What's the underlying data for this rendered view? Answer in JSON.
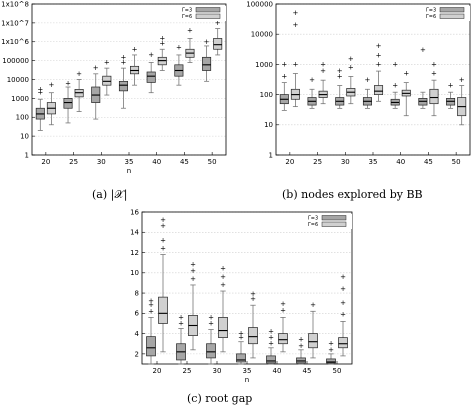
{
  "captions": {
    "a": "(a) |𝒳|",
    "b": "(b) nodes explored by BB",
    "c": "(c) root gap"
  },
  "colors": {
    "gamma3": "#a6a6a6",
    "gamma6": "#d0d0d0"
  },
  "chart_data": [
    {
      "type": "box",
      "yscale": "log",
      "ylim": [
        1,
        100000000
      ],
      "xlabel": "n",
      "categories": [
        "20",
        "25",
        "30",
        "35",
        "40",
        "45",
        "50"
      ],
      "yticks": [
        "1",
        "10",
        "100",
        "1000",
        "10000",
        "100000",
        "1x10^6",
        "1x10^7",
        "1x10^8"
      ],
      "legend": [
        "Γ=3",
        "Γ=6"
      ],
      "series": [
        {
          "name": "Γ=3",
          "boxes": [
            {
              "min": 20,
              "q1": 80,
              "med": 150,
              "q3": 300,
              "max": 900,
              "out": [
                2000,
                3000
              ]
            },
            {
              "min": 50,
              "q1": 300,
              "med": 600,
              "q3": 1000,
              "max": 4000,
              "out": [
                6000
              ]
            },
            {
              "min": 80,
              "q1": 600,
              "med": 1500,
              "q3": 4000,
              "max": 20000,
              "out": [
                40000
              ]
            },
            {
              "min": 300,
              "q1": 2500,
              "med": 5000,
              "q3": 8000,
              "max": 40000,
              "out": [
                80000,
                150000
              ]
            },
            {
              "min": 2000,
              "q1": 7000,
              "med": 15000,
              "q3": 25000,
              "max": 80000,
              "out": [
                200000
              ]
            },
            {
              "min": 5000,
              "q1": 15000,
              "med": 30000,
              "q3": 60000,
              "max": 200000,
              "out": [
                500000
              ]
            },
            {
              "min": 8000,
              "q1": 30000,
              "med": 60000,
              "q3": 150000,
              "max": 600000,
              "out": [
                1000000
              ]
            }
          ]
        },
        {
          "name": "Γ=6",
          "boxes": [
            {
              "min": 40,
              "q1": 150,
              "med": 300,
              "q3": 600,
              "max": 2000,
              "out": [
                5000
              ]
            },
            {
              "min": 200,
              "q1": 1200,
              "med": 2000,
              "q3": 3000,
              "max": 10000,
              "out": [
                20000
              ]
            },
            {
              "min": 1500,
              "q1": 5000,
              "med": 8000,
              "q3": 15000,
              "max": 40000,
              "out": [
                80000
              ]
            },
            {
              "min": 5000,
              "q1": 20000,
              "med": 30000,
              "q3": 50000,
              "max": 200000,
              "out": [
                400000
              ]
            },
            {
              "min": 30000,
              "q1": 60000,
              "med": 100000,
              "q3": 150000,
              "max": 400000,
              "out": [
                800000,
                1500000
              ]
            },
            {
              "min": 80000,
              "q1": 150000,
              "med": 250000,
              "q3": 400000,
              "max": 1500000,
              "out": [
                4000000
              ]
            },
            {
              "min": 200000,
              "q1": 400000,
              "med": 700000,
              "q3": 1500000,
              "max": 5000000,
              "out": [
                10000000
              ]
            }
          ]
        }
      ]
    },
    {
      "type": "box",
      "yscale": "log",
      "ylim": [
        1,
        100000
      ],
      "xlabel": "",
      "categories": [
        "20",
        "25",
        "30",
        "35",
        "40",
        "45",
        "50"
      ],
      "yticks": [
        "1",
        "10",
        "100",
        "1000",
        "10000",
        "100000"
      ],
      "legend": [
        "Γ=3",
        "Γ=6"
      ],
      "series": [
        {
          "name": "Γ=3",
          "boxes": [
            {
              "min": 30,
              "q1": 50,
              "med": 70,
              "q3": 100,
              "max": 250,
              "out": [
                400,
                1000
              ]
            },
            {
              "min": 35,
              "q1": 45,
              "med": 60,
              "q3": 80,
              "max": 150,
              "out": [
                300
              ]
            },
            {
              "min": 35,
              "q1": 45,
              "med": 60,
              "q3": 80,
              "max": 200,
              "out": [
                400,
                600
              ]
            },
            {
              "min": 35,
              "q1": 45,
              "med": 60,
              "q3": 80,
              "max": 150,
              "out": [
                300
              ]
            },
            {
              "min": 35,
              "q1": 45,
              "med": 55,
              "q3": 70,
              "max": 120,
              "out": [
                200,
                1000
              ]
            },
            {
              "min": 35,
              "q1": 45,
              "med": 60,
              "q3": 75,
              "max": 120,
              "out": [
                3000
              ]
            },
            {
              "min": 35,
              "q1": 45,
              "med": 60,
              "q3": 75,
              "max": 120,
              "out": [
                200
              ]
            }
          ]
        },
        {
          "name": "Γ=6",
          "boxes": [
            {
              "min": 40,
              "q1": 70,
              "med": 100,
              "q3": 150,
              "max": 500,
              "out": [
                1000,
                20000,
                50000
              ]
            },
            {
              "min": 50,
              "q1": 80,
              "med": 100,
              "q3": 130,
              "max": 300,
              "out": [
                600,
                1000
              ]
            },
            {
              "min": 50,
              "q1": 90,
              "med": 120,
              "q3": 160,
              "max": 400,
              "out": [
                800,
                1500
              ]
            },
            {
              "min": 60,
              "q1": 100,
              "med": 130,
              "q3": 200,
              "max": 600,
              "out": [
                1000,
                2000,
                4000
              ]
            },
            {
              "min": 20,
              "q1": 90,
              "med": 110,
              "q3": 140,
              "max": 250,
              "out": [
                500
              ]
            },
            {
              "min": 20,
              "q1": 50,
              "med": 80,
              "q3": 150,
              "max": 300,
              "out": [
                500,
                1000
              ]
            },
            {
              "min": 10,
              "q1": 20,
              "med": 40,
              "q3": 80,
              "max": 200,
              "out": [
                300
              ]
            }
          ]
        }
      ]
    },
    {
      "type": "box",
      "yscale": "linear",
      "ylim": [
        1,
        16
      ],
      "xlabel": "n",
      "categories": [
        "20",
        "25",
        "30",
        "35",
        "40",
        "45",
        "50"
      ],
      "yticks": [
        "2",
        "4",
        "6",
        "8",
        "10",
        "12",
        "14",
        "16"
      ],
      "legend": [
        "Γ=3",
        "Γ=6"
      ],
      "series": [
        {
          "name": "Γ=3",
          "boxes": [
            {
              "min": 1,
              "q1": 1.8,
              "med": 2.6,
              "q3": 3.7,
              "max": 5.6,
              "out": [
                6.2,
                6.8,
                7.2
              ]
            },
            {
              "min": 1,
              "q1": 1.4,
              "med": 2.2,
              "q3": 3.0,
              "max": 4.5,
              "out": [
                5.0,
                5.6
              ]
            },
            {
              "min": 1,
              "q1": 1.6,
              "med": 2.2,
              "q3": 3.0,
              "max": 4.4,
              "out": [
                5.0,
                5.6
              ]
            },
            {
              "min": 1,
              "q1": 1.2,
              "med": 1.4,
              "q3": 2.0,
              "max": 3.2,
              "out": [
                3.6,
                4.0
              ]
            },
            {
              "min": 1,
              "q1": 1.1,
              "med": 1.3,
              "q3": 1.8,
              "max": 2.6,
              "out": [
                3.0,
                3.6,
                4.2
              ]
            },
            {
              "min": 1,
              "q1": 1.1,
              "med": 1.3,
              "q3": 1.6,
              "max": 2.4,
              "out": [
                2.8,
                3.4
              ]
            },
            {
              "min": 1,
              "q1": 1.1,
              "med": 1.2,
              "q3": 1.5,
              "max": 2.0,
              "out": [
                2.4,
                3.0
              ]
            }
          ]
        },
        {
          "name": "Γ=6",
          "boxes": [
            {
              "min": 2.2,
              "q1": 5.0,
              "med": 6.0,
              "q3": 7.6,
              "max": 11.8,
              "out": [
                12.4,
                13.2,
                14.6,
                15.2
              ]
            },
            {
              "min": 2.4,
              "q1": 3.8,
              "med": 4.8,
              "q3": 5.8,
              "max": 8.8,
              "out": [
                9.4,
                10.2,
                10.8
              ]
            },
            {
              "min": 2.2,
              "q1": 3.6,
              "med": 4.3,
              "q3": 5.6,
              "max": 8.2,
              "out": [
                8.8,
                9.6,
                10.4
              ]
            },
            {
              "min": 1.6,
              "q1": 3.0,
              "med": 3.7,
              "q3": 4.6,
              "max": 6.8,
              "out": [
                7.4,
                7.9
              ]
            },
            {
              "min": 2.2,
              "q1": 3.0,
              "med": 3.4,
              "q3": 4.0,
              "max": 5.6,
              "out": [
                6.3,
                6.9
              ]
            },
            {
              "min": 1.6,
              "q1": 2.6,
              "med": 3.2,
              "q3": 4.0,
              "max": 6.2,
              "out": [
                6.8
              ]
            },
            {
              "min": 1.8,
              "q1": 2.6,
              "med": 3.0,
              "q3": 3.6,
              "max": 5.2,
              "out": [
                5.9,
                7.0,
                8.4,
                9.6
              ]
            }
          ]
        }
      ]
    }
  ]
}
